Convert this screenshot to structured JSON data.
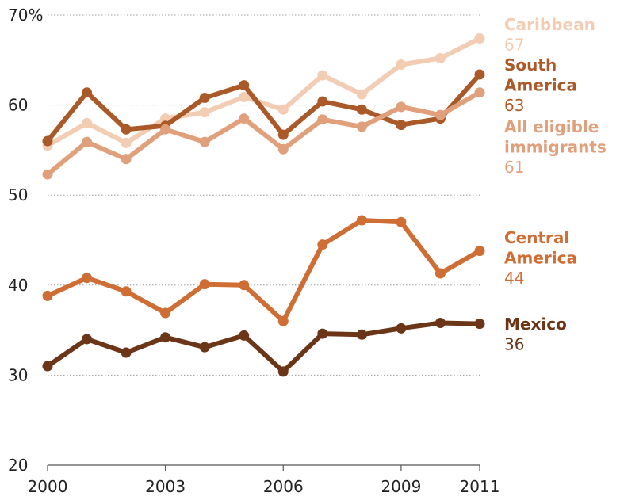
{
  "chart_data": {
    "type": "line",
    "x": [
      2000,
      2001,
      2002,
      2003,
      2004,
      2005,
      2006,
      2007,
      2008,
      2009,
      2010,
      2011
    ],
    "xticks": [
      "2000",
      "2003",
      "2006",
      "2009",
      "2011"
    ],
    "xtick_values": [
      2000,
      2003,
      2006,
      2009,
      2011
    ],
    "yticks": [
      "20",
      "30",
      "40",
      "50",
      "60",
      "70%"
    ],
    "ytick_values": [
      20,
      30,
      40,
      50,
      60,
      70
    ],
    "ylim": [
      20,
      70
    ],
    "xlim": [
      2000,
      2011
    ],
    "grid": "horizontal dotted",
    "legend_placement": "right, at line ends",
    "series": [
      {
        "name": "Caribbean",
        "label_lines": [
          "Caribbean"
        ],
        "end_label": "67",
        "color": "#F2CDB3",
        "values": [
          55.5,
          58.0,
          55.8,
          58.5,
          59.2,
          60.9,
          59.5,
          63.3,
          61.2,
          64.5,
          65.2,
          67.4
        ]
      },
      {
        "name": "South America",
        "label_lines": [
          "South",
          "America"
        ],
        "end_label": "63",
        "color": "#A95A28",
        "values": [
          56.0,
          61.4,
          57.3,
          57.7,
          60.8,
          62.2,
          56.7,
          60.4,
          59.5,
          57.8,
          58.5,
          63.4
        ]
      },
      {
        "name": "All eligible immigrants",
        "label_lines": [
          "All eligible",
          "immigrants"
        ],
        "end_label": "61",
        "color": "#E0A07C",
        "values": [
          52.3,
          55.9,
          54.0,
          57.3,
          55.9,
          58.5,
          55.1,
          58.4,
          57.6,
          59.8,
          58.9,
          61.4
        ]
      },
      {
        "name": "Central America",
        "label_lines": [
          "Central",
          "America"
        ],
        "end_label": "44",
        "color": "#CF6E34",
        "values": [
          38.8,
          40.8,
          39.3,
          36.9,
          40.1,
          40.0,
          36.0,
          44.5,
          47.2,
          47.0,
          41.3,
          43.8
        ]
      },
      {
        "name": "Mexico",
        "label_lines": [
          "Mexico"
        ],
        "end_label": "36",
        "color": "#6B3517",
        "values": [
          31.0,
          34.0,
          32.5,
          34.2,
          33.1,
          34.4,
          30.4,
          34.6,
          34.5,
          35.2,
          35.8,
          35.7
        ]
      }
    ]
  }
}
